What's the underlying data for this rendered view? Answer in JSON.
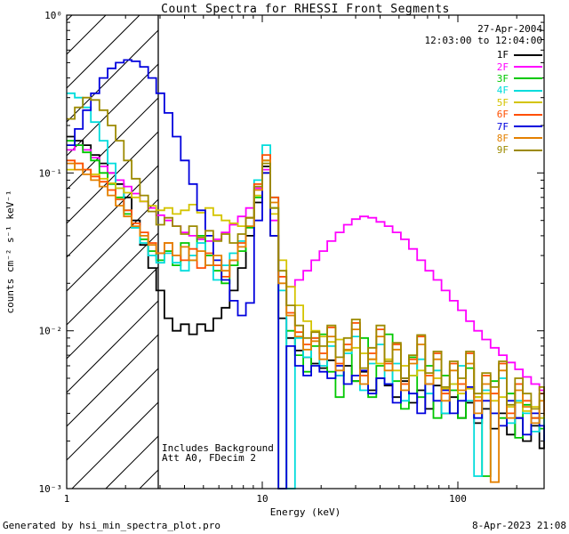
{
  "header": {
    "title": "Count Spectra for RHESSI Front Segments",
    "date": "27-Apr-2004",
    "interval": "12:03:00 to 12:04:00"
  },
  "annotations": {
    "line1": "Includes Background",
    "line2": "Att A0, FDecim 2"
  },
  "footer": {
    "left": "Generated by hsi_min_spectra_plot.pro",
    "right": "8-Apr-2023 21:08"
  },
  "chart_data": {
    "type": "line",
    "subtype": "step-histogram-log-log",
    "title": "Count Spectra for RHESSI Front Segments",
    "xlabel": "Energy (keV)",
    "ylabel": "counts cm⁻² s⁻¹ keV⁻¹",
    "xlim": [
      1,
      276
    ],
    "ylim": [
      0.001,
      1
    ],
    "x_scale": "log",
    "y_scale": "log",
    "x_ticks": {
      "values": [
        1,
        10,
        100
      ],
      "labels": [
        "1",
        "10",
        "100"
      ]
    },
    "y_ticks": {
      "values": [
        1,
        0.1,
        0.01,
        0.001
      ],
      "labels": [
        "10⁰",
        "10⁻¹",
        "10⁻²",
        "10⁻³"
      ]
    },
    "hatched_region": {
      "xmin": 1,
      "xmax": 2.94,
      "style": "diagonal-hatch"
    },
    "legend_position": "top-right",
    "energies_kev": [
      1.0,
      1.1,
      1.21,
      1.33,
      1.47,
      1.62,
      1.78,
      1.96,
      2.15,
      2.37,
      2.61,
      2.87,
      3.16,
      3.48,
      3.83,
      4.22,
      4.64,
      5.11,
      5.62,
      6.19,
      6.81,
      7.5,
      8.25,
      9.08,
      10.0,
      11.0,
      12.1,
      13.3,
      14.7,
      16.2,
      17.8,
      19.6,
      21.5,
      23.7,
      26.1,
      28.7,
      31.6,
      34.8,
      38.3,
      42.2,
      46.4,
      51.1,
      56.2,
      61.9,
      68.1,
      75.0,
      82.5,
      90.8,
      100,
      110,
      121,
      133,
      147,
      162,
      178,
      196,
      215,
      237,
      261,
      287
    ],
    "series": [
      {
        "name": "1F",
        "color": "#000000",
        "values": [
          0.17,
          0.16,
          0.15,
          0.13,
          0.115,
          0.1,
          0.085,
          0.07,
          0.05,
          0.035,
          0.025,
          0.018,
          0.012,
          0.01,
          0.011,
          0.0095,
          0.011,
          0.01,
          0.012,
          0.014,
          0.018,
          0.025,
          0.04,
          0.065,
          0.11,
          0.04,
          0.012,
          0.009,
          0.0075,
          0.0068,
          0.0062,
          0.0058,
          0.0065,
          0.0052,
          0.006,
          0.0048,
          0.0055,
          0.0042,
          0.005,
          0.0045,
          0.0038,
          0.0048,
          0.0035,
          0.0042,
          0.0032,
          0.0045,
          0.003,
          0.0038,
          0.0028,
          0.0035,
          0.0026,
          0.0032,
          0.0024,
          0.003,
          0.0022,
          0.0028,
          0.002,
          0.0025,
          0.0018,
          0.0022
        ]
      },
      {
        "name": "2F",
        "color": "#ff00ff",
        "values": [
          0.14,
          0.15,
          0.14,
          0.125,
          0.11,
          0.1,
          0.09,
          0.082,
          0.074,
          0.066,
          0.06,
          0.054,
          0.05,
          0.046,
          0.042,
          0.04,
          0.038,
          0.037,
          0.038,
          0.042,
          0.047,
          0.053,
          0.06,
          0.08,
          0.105,
          0.05,
          0.022,
          0.019,
          0.021,
          0.024,
          0.028,
          0.032,
          0.037,
          0.042,
          0.047,
          0.051,
          0.053,
          0.052,
          0.049,
          0.046,
          0.042,
          0.038,
          0.033,
          0.028,
          0.024,
          0.021,
          0.018,
          0.0155,
          0.0135,
          0.0115,
          0.01,
          0.0088,
          0.0078,
          0.007,
          0.0063,
          0.0057,
          0.0051,
          0.0046,
          0.0042,
          0.0038
        ]
      },
      {
        "name": "3F",
        "color": "#00c800",
        "values": [
          0.16,
          0.15,
          0.135,
          0.12,
          0.1,
          0.085,
          0.07,
          0.055,
          0.045,
          0.038,
          0.032,
          0.028,
          0.032,
          0.026,
          0.036,
          0.028,
          0.04,
          0.03,
          0.024,
          0.02,
          0.026,
          0.032,
          0.045,
          0.07,
          0.12,
          0.06,
          0.0008,
          0.01,
          0.007,
          0.0055,
          0.008,
          0.0095,
          0.0055,
          0.0038,
          0.0075,
          0.0048,
          0.009,
          0.0038,
          0.006,
          0.0095,
          0.0048,
          0.0032,
          0.0068,
          0.0038,
          0.006,
          0.0028,
          0.0052,
          0.0042,
          0.0028,
          0.0058,
          0.0038,
          0.0012,
          0.0048,
          0.0028,
          0.004,
          0.0021,
          0.0034,
          0.0028,
          0.0024,
          0.002
        ]
      },
      {
        "name": "4F",
        "color": "#00dcdc",
        "values": [
          0.32,
          0.3,
          0.26,
          0.21,
          0.16,
          0.115,
          0.08,
          0.058,
          0.045,
          0.036,
          0.03,
          0.027,
          0.031,
          0.027,
          0.024,
          0.03,
          0.036,
          0.026,
          0.021,
          0.026,
          0.031,
          0.037,
          0.052,
          0.09,
          0.15,
          0.07,
          0.018,
          0.0009,
          0.009,
          0.0068,
          0.009,
          0.006,
          0.008,
          0.0052,
          0.0072,
          0.0092,
          0.0042,
          0.0062,
          0.0082,
          0.0046,
          0.0062,
          0.0036,
          0.0052,
          0.0066,
          0.004,
          0.0056,
          0.003,
          0.0046,
          0.006,
          0.0036,
          0.0012,
          0.0042,
          0.003,
          0.005,
          0.0026,
          0.0036,
          0.003,
          0.0023,
          0.0028,
          0.0024
        ]
      },
      {
        "name": "5F",
        "color": "#d4c400",
        "values": [
          0.105,
          0.115,
          0.105,
          0.098,
          0.092,
          0.086,
          0.08,
          0.075,
          0.07,
          0.066,
          0.062,
          0.058,
          0.06,
          0.055,
          0.058,
          0.063,
          0.056,
          0.06,
          0.054,
          0.05,
          0.048,
          0.046,
          0.052,
          0.072,
          0.1,
          0.055,
          0.028,
          0.019,
          0.0145,
          0.0115,
          0.01,
          0.0092,
          0.0085,
          0.0088,
          0.0075,
          0.0078,
          0.0072,
          0.0066,
          0.0062,
          0.0066,
          0.0056,
          0.006,
          0.0052,
          0.0056,
          0.0046,
          0.005,
          0.0043,
          0.0046,
          0.004,
          0.0043,
          0.0038,
          0.004,
          0.0036,
          0.0038,
          0.0033,
          0.0035,
          0.0031,
          0.0033,
          0.0028,
          0.003
        ]
      },
      {
        "name": "6F",
        "color": "#ff4f00",
        "values": [
          0.12,
          0.115,
          0.105,
          0.095,
          0.088,
          0.078,
          0.068,
          0.058,
          0.048,
          0.042,
          0.036,
          0.031,
          0.036,
          0.03,
          0.028,
          0.033,
          0.025,
          0.031,
          0.026,
          0.022,
          0.028,
          0.036,
          0.052,
          0.085,
          0.13,
          0.07,
          0.022,
          0.013,
          0.0098,
          0.0082,
          0.009,
          0.0072,
          0.0105,
          0.0062,
          0.0082,
          0.0112,
          0.0052,
          0.0072,
          0.0102,
          0.0062,
          0.0082,
          0.0046,
          0.0066,
          0.0092,
          0.0052,
          0.0072,
          0.004,
          0.0062,
          0.0046,
          0.0072,
          0.0036,
          0.0052,
          0.004,
          0.0062,
          0.003,
          0.0046,
          0.0036,
          0.0028,
          0.004,
          0.0031
        ]
      },
      {
        "name": "7F",
        "color": "#0000dd",
        "values": [
          0.15,
          0.19,
          0.25,
          0.32,
          0.4,
          0.46,
          0.5,
          0.52,
          0.51,
          0.47,
          0.4,
          0.32,
          0.24,
          0.17,
          0.12,
          0.085,
          0.058,
          0.04,
          0.028,
          0.021,
          0.0155,
          0.0125,
          0.015,
          0.05,
          0.1,
          0.04,
          0.0009,
          0.008,
          0.006,
          0.0052,
          0.006,
          0.0055,
          0.005,
          0.006,
          0.0046,
          0.0052,
          0.0056,
          0.004,
          0.005,
          0.0046,
          0.0035,
          0.005,
          0.004,
          0.003,
          0.0046,
          0.0036,
          0.0042,
          0.003,
          0.0036,
          0.0044,
          0.0028,
          0.0036,
          0.003,
          0.0025,
          0.0036,
          0.0028,
          0.0022,
          0.003,
          0.0025,
          0.002
        ]
      },
      {
        "name": "8F",
        "color": "#e48000",
        "values": [
          0.115,
          0.105,
          0.098,
          0.09,
          0.082,
          0.072,
          0.062,
          0.053,
          0.046,
          0.04,
          0.035,
          0.031,
          0.036,
          0.03,
          0.034,
          0.028,
          0.032,
          0.026,
          0.03,
          0.024,
          0.028,
          0.034,
          0.046,
          0.078,
          0.12,
          0.065,
          0.02,
          0.0125,
          0.0092,
          0.0076,
          0.0086,
          0.0066,
          0.0092,
          0.0056,
          0.0076,
          0.0102,
          0.0046,
          0.0066,
          0.0092,
          0.0056,
          0.0076,
          0.0042,
          0.0062,
          0.0082,
          0.0046,
          0.0066,
          0.0036,
          0.0056,
          0.0042,
          0.0062,
          0.003,
          0.0046,
          0.0011,
          0.0056,
          0.0028,
          0.0042,
          0.0033,
          0.0026,
          0.0036,
          0.0029
        ]
      },
      {
        "name": "9F",
        "color": "#9c8a00",
        "values": [
          0.22,
          0.26,
          0.3,
          0.29,
          0.25,
          0.2,
          0.16,
          0.12,
          0.092,
          0.072,
          0.057,
          0.047,
          0.052,
          0.046,
          0.041,
          0.046,
          0.039,
          0.043,
          0.037,
          0.041,
          0.036,
          0.041,
          0.052,
          0.082,
          0.115,
          0.06,
          0.024,
          0.0145,
          0.0108,
          0.009,
          0.0098,
          0.008,
          0.0108,
          0.0068,
          0.009,
          0.0118,
          0.0058,
          0.0078,
          0.0108,
          0.0064,
          0.0084,
          0.005,
          0.007,
          0.0094,
          0.0054,
          0.0074,
          0.0044,
          0.0064,
          0.005,
          0.0074,
          0.004,
          0.0054,
          0.0044,
          0.0064,
          0.0034,
          0.005,
          0.004,
          0.0032,
          0.0044,
          0.0036
        ]
      }
    ]
  }
}
